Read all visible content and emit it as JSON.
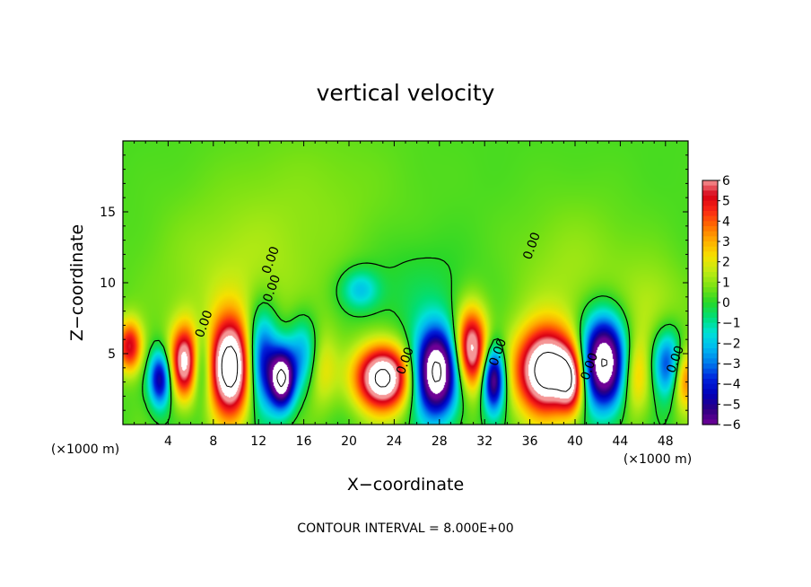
{
  "chart_data": {
    "type": "heatmap",
    "title": "vertical velocity",
    "xlabel": "X−coordinate",
    "ylabel": "Z−coordinate",
    "x_unit_left": "(×1000 m)",
    "x_unit_right": "(×1000 m)",
    "xlim": [
      0,
      50
    ],
    "ylim": [
      0,
      20
    ],
    "x_ticks": [
      4,
      8,
      12,
      16,
      20,
      24,
      28,
      32,
      36,
      40,
      44,
      48
    ],
    "y_ticks": [
      5,
      10,
      15
    ],
    "colorbar": {
      "min": -6,
      "max": 6,
      "tick_labels": [
        "6",
        "5",
        "4",
        "3",
        "2",
        "1",
        "0",
        "−1",
        "−2",
        "−3",
        "−4",
        "−5",
        "−6"
      ],
      "tick_values": [
        6,
        5,
        4,
        3,
        2,
        1,
        0,
        -1,
        -2,
        -3,
        -4,
        -5,
        -6
      ]
    },
    "contour_interval_text": "CONTOUR INTERVAL = 8.000E+00",
    "contour_labels": [
      "0.00",
      "0.00",
      "0.00",
      "0.00",
      "0.00",
      "0.00",
      "0.00",
      "0.00"
    ],
    "background_value": 0.3,
    "cells": [
      {
        "x": 0.6,
        "z": 5.5,
        "v": 5.0,
        "sx": 0.8,
        "sz": 1.3
      },
      {
        "x": 3.3,
        "z": 3.2,
        "v": -5.5,
        "sx": 0.7,
        "sz": 1.4
      },
      {
        "x": 5.6,
        "z": 4.4,
        "v": 7.0,
        "sx": 1.0,
        "sz": 1.8
      },
      {
        "x": 6.8,
        "z": 4.2,
        "v": -4.0,
        "sx": 0.7,
        "sz": 1.8
      },
      {
        "x": 9.5,
        "z": 4.0,
        "v": 9.0,
        "sx": 1.3,
        "sz": 2.4
      },
      {
        "x": 12.3,
        "z": 4.6,
        "v": -5.0,
        "sx": 1.0,
        "sz": 2.4
      },
      {
        "x": 14.1,
        "z": 3.2,
        "v": -8.0,
        "sx": 0.8,
        "sz": 1.5
      },
      {
        "x": 16.0,
        "z": 5.0,
        "v": -3.0,
        "sx": 1.0,
        "sz": 1.8
      },
      {
        "x": 17.5,
        "z": 4.0,
        "v": 2.0,
        "sx": 1.0,
        "sz": 2.0
      },
      {
        "x": 23.0,
        "z": 3.3,
        "v": 8.5,
        "sx": 1.7,
        "sz": 1.6
      },
      {
        "x": 27.7,
        "z": 3.7,
        "v": -9.0,
        "sx": 1.4,
        "sz": 2.2
      },
      {
        "x": 30.8,
        "z": 5.3,
        "v": 7.0,
        "sx": 1.0,
        "sz": 2.0
      },
      {
        "x": 32.8,
        "z": 3.2,
        "v": -7.0,
        "sx": 0.7,
        "sz": 1.6
      },
      {
        "x": 37.5,
        "z": 3.8,
        "v": 9.0,
        "sx": 1.9,
        "sz": 2.1
      },
      {
        "x": 39.7,
        "z": 3.0,
        "v": 4.5,
        "sx": 0.8,
        "sz": 1.6
      },
      {
        "x": 42.5,
        "z": 4.4,
        "v": -9.0,
        "sx": 1.5,
        "sz": 2.3
      },
      {
        "x": 45.3,
        "z": 3.5,
        "v": 3.0,
        "sx": 1.0,
        "sz": 2.0
      },
      {
        "x": 48.2,
        "z": 4.3,
        "v": -4.5,
        "sx": 1.0,
        "sz": 1.7
      },
      {
        "x": 49.7,
        "z": 3.3,
        "v": 4.0,
        "sx": 0.8,
        "sz": 1.6
      },
      {
        "x": 21.0,
        "z": 9.5,
        "v": -2.3,
        "sx": 1.2,
        "sz": 1.0
      },
      {
        "x": 26.0,
        "z": 9.5,
        "v": -0.6,
        "sx": 3.5,
        "sz": 2.5
      },
      {
        "x": 10.0,
        "z": 10.0,
        "v": 1.0,
        "sx": 5.0,
        "sz": 4.0
      },
      {
        "x": 40.0,
        "z": 10.0,
        "v": 0.9,
        "sx": 4.0,
        "sz": 4.0
      },
      {
        "x": 17.0,
        "z": 16.0,
        "v": 0.5,
        "sx": 6.0,
        "sz": 4.0
      },
      {
        "x": 47.0,
        "z": 8.0,
        "v": 1.0,
        "sx": 2.0,
        "sz": 2.5
      }
    ]
  }
}
